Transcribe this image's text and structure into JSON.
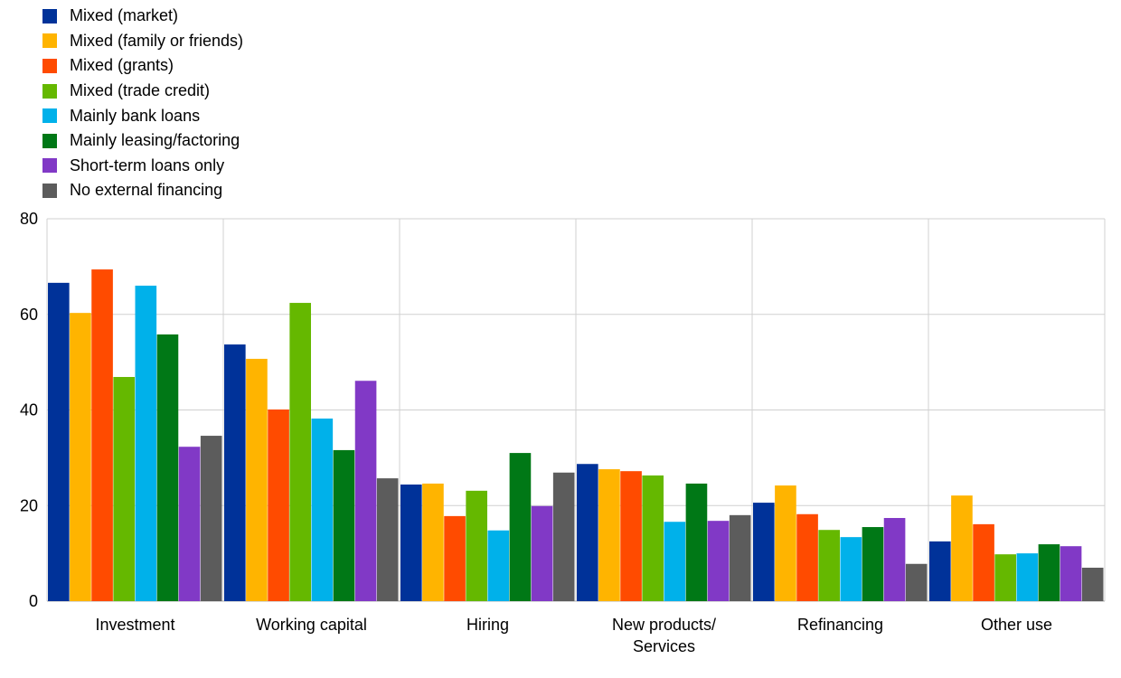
{
  "chart_data": {
    "type": "bar",
    "title": "",
    "xlabel": "",
    "ylabel": "",
    "ylim": [
      0,
      80
    ],
    "yticks": [
      0,
      20,
      40,
      60,
      80
    ],
    "grid": true,
    "legend_placement": "top-left",
    "categories": [
      [
        "Investment"
      ],
      [
        "Working capital"
      ],
      [
        "Hiring"
      ],
      [
        "New products/",
        "Services"
      ],
      [
        "Refinancing"
      ],
      [
        "Other use"
      ]
    ],
    "series": [
      {
        "name": "Mixed (market)",
        "color": "#003299",
        "values": [
          66.6,
          53.7,
          24.4,
          28.7,
          20.6,
          12.5
        ]
      },
      {
        "name": "Mixed (family or friends)",
        "color": "#FFB400",
        "values": [
          60.3,
          50.7,
          24.6,
          27.6,
          24.2,
          22.1
        ]
      },
      {
        "name": "Mixed (grants)",
        "color": "#FF4B00",
        "values": [
          69.4,
          40.1,
          17.8,
          27.2,
          18.2,
          16.1
        ]
      },
      {
        "name": "Mixed (trade credit)",
        "color": "#65B800",
        "values": [
          46.9,
          62.4,
          23.1,
          26.3,
          14.9,
          9.8
        ]
      },
      {
        "name": "Mainly bank loans",
        "color": "#00B1EA",
        "values": [
          66.0,
          38.2,
          14.8,
          16.6,
          13.4,
          10.0
        ]
      },
      {
        "name": "Mainly leasing/factoring",
        "color": "#007816",
        "values": [
          55.8,
          31.6,
          31.0,
          24.6,
          15.5,
          11.9
        ]
      },
      {
        "name": "Short-term loans only",
        "color": "#8139C6",
        "values": [
          32.3,
          46.1,
          19.9,
          16.8,
          17.4,
          11.5
        ]
      },
      {
        "name": "No external financing",
        "color": "#5C5C5C",
        "values": [
          34.6,
          25.7,
          26.9,
          18.0,
          7.8,
          7.0
        ]
      }
    ]
  }
}
